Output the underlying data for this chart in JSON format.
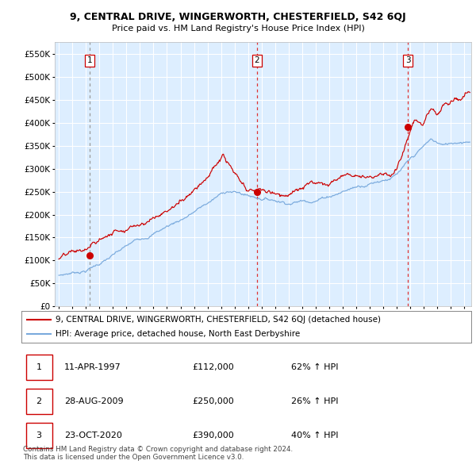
{
  "title": "9, CENTRAL DRIVE, WINGERWORTH, CHESTERFIELD, S42 6QJ",
  "subtitle": "Price paid vs. HM Land Registry's House Price Index (HPI)",
  "ytick_values": [
    0,
    50000,
    100000,
    150000,
    200000,
    250000,
    300000,
    350000,
    400000,
    450000,
    500000,
    550000
  ],
  "xmin": 1994.7,
  "xmax": 2025.5,
  "ymin": 0,
  "ymax": 575000,
  "sale_dates": [
    1997.278,
    2009.659,
    2020.812
  ],
  "sale_prices": [
    112000,
    250000,
    390000
  ],
  "sale_labels": [
    "1",
    "2",
    "3"
  ],
  "red_line_color": "#cc0000",
  "blue_line_color": "#7aaadd",
  "background_color": "#ddeeff",
  "sale_dot_color": "#cc0000",
  "vline_color_red": "#dd3333",
  "vline_color_gray": "#999999",
  "legend_entries": [
    "9, CENTRAL DRIVE, WINGERWORTH, CHESTERFIELD, S42 6QJ (detached house)",
    "HPI: Average price, detached house, North East Derbyshire"
  ],
  "table_rows": [
    [
      "1",
      "11-APR-1997",
      "£112,000",
      "62% ↑ HPI"
    ],
    [
      "2",
      "28-AUG-2009",
      "£250,000",
      "26% ↑ HPI"
    ],
    [
      "3",
      "23-OCT-2020",
      "£390,000",
      "40% ↑ HPI"
    ]
  ],
  "footer": "Contains HM Land Registry data © Crown copyright and database right 2024.\nThis data is licensed under the Open Government Licence v3.0."
}
